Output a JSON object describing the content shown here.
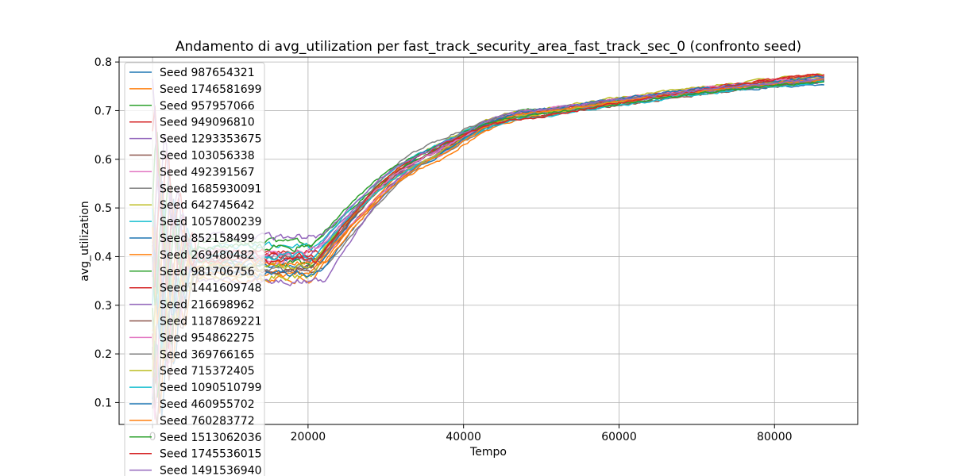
{
  "chart_data": {
    "type": "line",
    "title": "Andamento di avg_utilization per fast_track_security_area_fast_track_sec_0 (confronto seed)",
    "xlabel": "Tempo",
    "ylabel": "avg_utilization",
    "xlim": [
      -4300,
      90700
    ],
    "ylim": [
      0.055,
      0.81
    ],
    "xticks": [
      0,
      20000,
      40000,
      60000,
      80000
    ],
    "xtick_labels": [
      "0",
      "20000",
      "40000",
      "60000",
      "80000"
    ],
    "yticks": [
      0.1,
      0.2,
      0.3,
      0.4,
      0.5,
      0.6,
      0.7,
      0.8
    ],
    "ytick_labels": [
      "0.1",
      "0.2",
      "0.3",
      "0.4",
      "0.5",
      "0.6",
      "0.7",
      "0.8"
    ],
    "grid": true,
    "legend_position": "upper-left",
    "series": [
      {
        "name": "Seed 987654321",
        "color": "#1f77b4",
        "plateau": 0.38,
        "end": 0.755
      },
      {
        "name": "Seed 1746581699",
        "color": "#ff7f0e",
        "plateau": 0.355,
        "end": 0.77
      },
      {
        "name": "Seed 957957066",
        "color": "#2ca02c",
        "plateau": 0.43,
        "end": 0.765
      },
      {
        "name": "Seed 949096810",
        "color": "#d62728",
        "plateau": 0.41,
        "end": 0.775
      },
      {
        "name": "Seed 1293353675",
        "color": "#9467bd",
        "plateau": 0.4,
        "end": 0.76
      },
      {
        "name": "Seed 103056338",
        "color": "#8c564b",
        "plateau": 0.37,
        "end": 0.77
      },
      {
        "name": "Seed 492391567",
        "color": "#e377c2",
        "plateau": 0.39,
        "end": 0.765
      },
      {
        "name": "Seed 1685930091",
        "color": "#7f7f7f",
        "plateau": 0.375,
        "end": 0.76
      },
      {
        "name": "Seed 642745642",
        "color": "#bcbd22",
        "plateau": 0.36,
        "end": 0.775
      },
      {
        "name": "Seed 1057800239",
        "color": "#17becf",
        "plateau": 0.42,
        "end": 0.77
      },
      {
        "name": "Seed 852158499",
        "color": "#1f77b4",
        "plateau": 0.395,
        "end": 0.765
      },
      {
        "name": "Seed 269480482",
        "color": "#ff7f0e",
        "plateau": 0.365,
        "end": 0.77
      },
      {
        "name": "Seed 981706756",
        "color": "#2ca02c",
        "plateau": 0.385,
        "end": 0.76
      },
      {
        "name": "Seed 1441609748",
        "color": "#d62728",
        "plateau": 0.4,
        "end": 0.775
      },
      {
        "name": "Seed 216698962",
        "color": "#9467bd",
        "plateau": 0.35,
        "end": 0.765
      },
      {
        "name": "Seed 1187869221",
        "color": "#8c564b",
        "plateau": 0.375,
        "end": 0.76
      },
      {
        "name": "Seed 954862275",
        "color": "#e377c2",
        "plateau": 0.41,
        "end": 0.77
      },
      {
        "name": "Seed 369766165",
        "color": "#7f7f7f",
        "plateau": 0.395,
        "end": 0.765
      },
      {
        "name": "Seed 715372405",
        "color": "#bcbd22",
        "plateau": 0.38,
        "end": 0.77
      },
      {
        "name": "Seed 1090510799",
        "color": "#17becf",
        "plateau": 0.4,
        "end": 0.76
      },
      {
        "name": "Seed 460955702",
        "color": "#1f77b4",
        "plateau": 0.365,
        "end": 0.77
      },
      {
        "name": "Seed 760283772",
        "color": "#ff7f0e",
        "plateau": 0.385,
        "end": 0.765
      },
      {
        "name": "Seed 1513062036",
        "color": "#2ca02c",
        "plateau": 0.42,
        "end": 0.76
      },
      {
        "name": "Seed 1745536015",
        "color": "#d62728",
        "plateau": 0.39,
        "end": 0.775
      },
      {
        "name": "Seed 1491536940",
        "color": "#9467bd",
        "plateau": 0.44,
        "end": 0.765
      }
    ]
  }
}
